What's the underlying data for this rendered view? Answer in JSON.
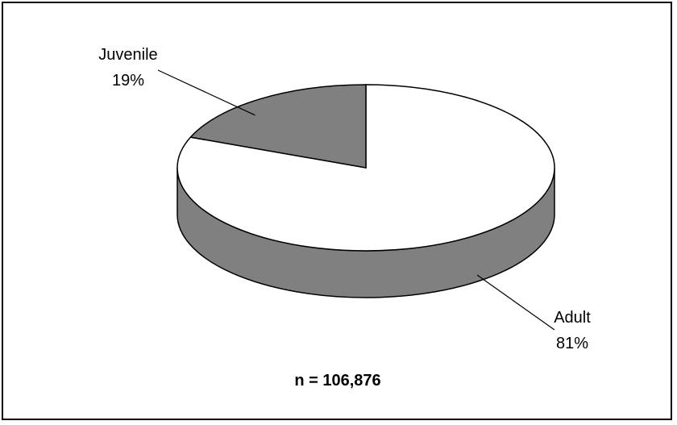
{
  "chart_data": {
    "type": "pie",
    "style": "3d",
    "slices": [
      {
        "label": "Juvenile",
        "value": 19,
        "pct_label": "19%",
        "color": "#808080"
      },
      {
        "label": "Adult",
        "value": 81,
        "pct_label": "81%",
        "color": "#ffffff"
      }
    ],
    "side_color": "#808080",
    "note": "n = 106,876"
  }
}
